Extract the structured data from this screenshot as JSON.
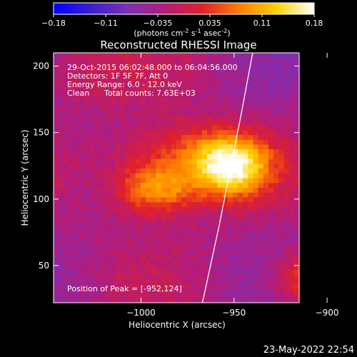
{
  "colorbar": {
    "ticks": [
      "-0.18",
      "-0.11",
      "-0.035",
      "0.035",
      "0.11",
      "0.18"
    ],
    "units_prefix": "(photons cm",
    "units_exp1": "-2",
    "units_mid": " s",
    "units_exp2": "-1",
    "units_mid2": " asec",
    "units_exp3": "-2",
    "units_suffix": ")"
  },
  "info": {
    "time_range": "29-Oct-2015 06:02:48.000 to 06:04:56.000",
    "detectors": "Detectors: 1F 5F 7F, Att 0",
    "energy": "Energy Range: 6.0 - 12.0 keV",
    "method": "Clean",
    "counts": "Total counts: 7.63E+03",
    "peak": "Position of Peak = [-952,124]"
  },
  "footer": {
    "date": "23-May-2022 22:54"
  },
  "chart_data": {
    "type": "heatmap",
    "title": "Reconstructed RHESSI Image",
    "xlabel": "Heliocentric X (arcsec)",
    "ylabel": "Heliocentric Y (arcsec)",
    "xlim": [
      -1047,
      -915
    ],
    "ylim": [
      22,
      210
    ],
    "xticks": [
      -1000,
      -950,
      -900
    ],
    "yticks": [
      50,
      100,
      150,
      200
    ],
    "xtick_labels": [
      "−1000",
      "−950",
      "−900"
    ],
    "ytick_labels": [
      "50",
      "100",
      "150",
      "200"
    ],
    "color_range": [
      -0.18,
      0.18
    ],
    "colormap": [
      "#0000ff",
      "#3a1fd0",
      "#7e2fb5",
      "#b31c7a",
      "#e0202a",
      "#ff7f00",
      "#ffd400",
      "#ffffff"
    ],
    "sources": [
      {
        "x": -952,
        "y": 124,
        "amp": 0.18,
        "sx": 14,
        "sy": 16
      },
      {
        "x": -992,
        "y": 108,
        "amp": 0.14,
        "sx": 16,
        "sy": 14
      },
      {
        "x": -975,
        "y": 135,
        "amp": 0.08,
        "sx": 26,
        "sy": 16
      },
      {
        "x": -905,
        "y": 40,
        "amp": 0.12,
        "sx": 16,
        "sy": 14
      },
      {
        "x": -1035,
        "y": 195,
        "amp": 0.03,
        "sx": 20,
        "sy": 18
      }
    ],
    "limb_line": [
      [
        -967,
        22
      ],
      [
        -958,
        80
      ],
      [
        -946,
        165
      ],
      [
        -940,
        210
      ]
    ],
    "limb_color": "#ffffff"
  }
}
